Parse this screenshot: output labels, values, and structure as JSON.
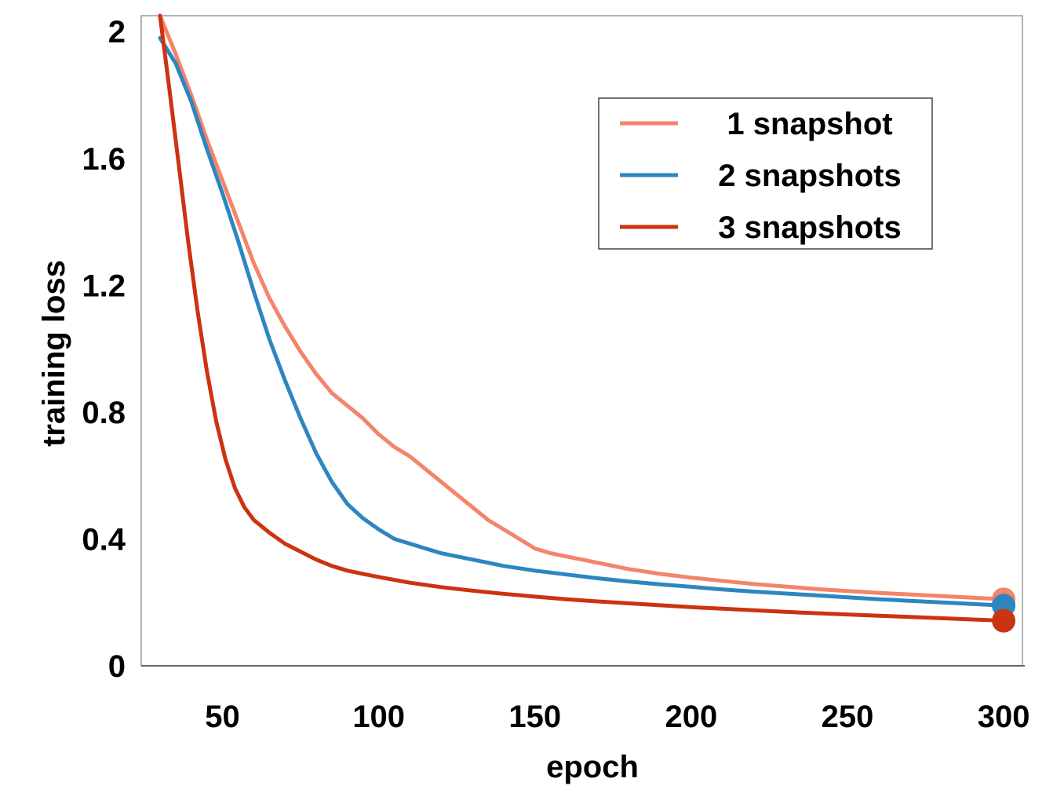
{
  "chart_data": {
    "type": "line",
    "xlabel": "epoch",
    "ylabel": "training loss",
    "xlim": [
      24,
      306
    ],
    "ylim": [
      0,
      2.05
    ],
    "xticks": [
      50,
      100,
      150,
      200,
      250,
      300
    ],
    "yticks": [
      0,
      0.4,
      0.8,
      1.2,
      1.6,
      2
    ],
    "ytick_labels": [
      "0",
      "0.4",
      "0.8",
      "1.2",
      "1.6",
      "2"
    ],
    "legend_position": "top-right",
    "grid": false,
    "series": [
      {
        "name": "1 snapshot",
        "color": "#F4846A",
        "x": [
          30,
          35,
          40,
          45,
          50,
          55,
          60,
          65,
          70,
          75,
          80,
          85,
          90,
          95,
          100,
          105,
          110,
          115,
          120,
          125,
          130,
          135,
          140,
          145,
          150,
          155,
          160,
          170,
          180,
          190,
          200,
          210,
          220,
          230,
          240,
          250,
          260,
          270,
          280,
          290,
          300
        ],
        "y": [
          2.05,
          1.93,
          1.8,
          1.66,
          1.53,
          1.4,
          1.27,
          1.16,
          1.07,
          0.99,
          0.92,
          0.86,
          0.82,
          0.78,
          0.73,
          0.69,
          0.66,
          0.62,
          0.58,
          0.54,
          0.5,
          0.46,
          0.43,
          0.4,
          0.37,
          0.355,
          0.345,
          0.325,
          0.305,
          0.29,
          0.278,
          0.268,
          0.258,
          0.25,
          0.242,
          0.236,
          0.23,
          0.225,
          0.22,
          0.215,
          0.21
        ]
      },
      {
        "name": "2 snapshots",
        "color": "#2E86C1",
        "x": [
          30,
          35,
          40,
          45,
          50,
          55,
          60,
          65,
          70,
          75,
          80,
          85,
          90,
          95,
          100,
          105,
          110,
          115,
          120,
          125,
          130,
          140,
          150,
          160,
          170,
          180,
          190,
          200,
          210,
          220,
          230,
          240,
          250,
          260,
          270,
          280,
          290,
          300
        ],
        "y": [
          1.98,
          1.9,
          1.78,
          1.63,
          1.49,
          1.34,
          1.18,
          1.03,
          0.9,
          0.78,
          0.67,
          0.58,
          0.51,
          0.465,
          0.43,
          0.4,
          0.385,
          0.37,
          0.355,
          0.345,
          0.335,
          0.315,
          0.3,
          0.288,
          0.276,
          0.266,
          0.257,
          0.249,
          0.241,
          0.234,
          0.228,
          0.222,
          0.216,
          0.21,
          0.205,
          0.2,
          0.195,
          0.19
        ]
      },
      {
        "name": "3 snapshots",
        "color": "#CC3311",
        "x": [
          30,
          33,
          36,
          39,
          42,
          45,
          48,
          51,
          54,
          57,
          60,
          65,
          70,
          75,
          80,
          85,
          90,
          95,
          100,
          110,
          120,
          130,
          140,
          150,
          160,
          170,
          180,
          190,
          200,
          210,
          220,
          230,
          240,
          250,
          260,
          270,
          280,
          290,
          300
        ],
        "y": [
          2.05,
          1.82,
          1.58,
          1.34,
          1.12,
          0.93,
          0.77,
          0.65,
          0.56,
          0.5,
          0.46,
          0.42,
          0.385,
          0.36,
          0.335,
          0.315,
          0.3,
          0.29,
          0.28,
          0.262,
          0.248,
          0.237,
          0.227,
          0.218,
          0.21,
          0.203,
          0.197,
          0.191,
          0.185,
          0.18,
          0.175,
          0.17,
          0.166,
          0.162,
          0.158,
          0.154,
          0.15,
          0.146,
          0.142
        ]
      }
    ]
  }
}
